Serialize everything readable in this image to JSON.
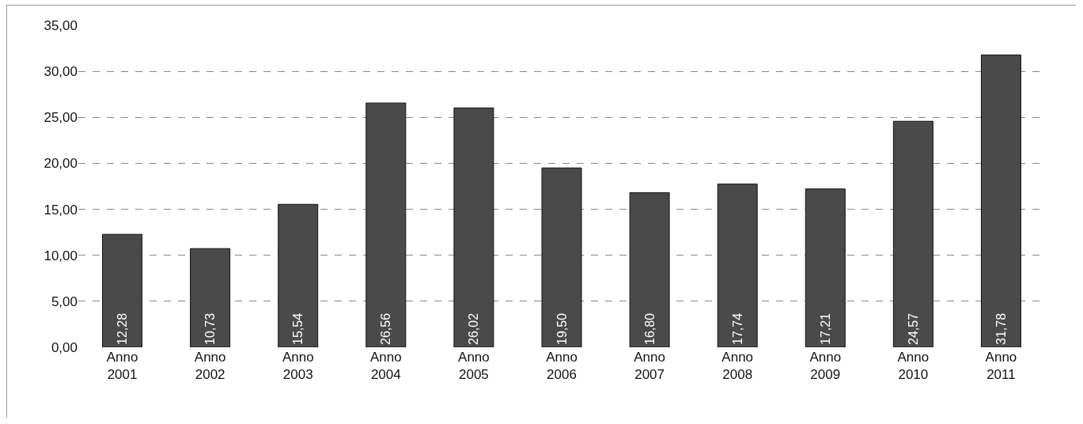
{
  "chart_data": {
    "type": "bar",
    "categories": [
      "Anno 2001",
      "Anno 2002",
      "Anno 2003",
      "Anno 2004",
      "Anno 2005",
      "Anno 2006",
      "Anno 2007",
      "Anno 2008",
      "Anno 2009",
      "Anno 2010",
      "Anno 2011"
    ],
    "values": [
      12.28,
      10.73,
      15.54,
      26.56,
      26.02,
      19.5,
      16.8,
      17.74,
      17.21,
      24.57,
      31.78
    ],
    "value_labels": [
      "12,28",
      "10,73",
      "15,54",
      "26,56",
      "26,02",
      "19,50",
      "16,80",
      "17,74",
      "17,21",
      "24,57",
      "31,78"
    ],
    "color": "#4a4a4a",
    "ylim": [
      0,
      35
    ],
    "yticks": [
      {
        "value": 0,
        "label": "0,00"
      },
      {
        "value": 5,
        "label": "5,00"
      },
      {
        "value": 10,
        "label": "10,00"
      },
      {
        "value": 15,
        "label": "15,00"
      },
      {
        "value": 20,
        "label": "20,00"
      },
      {
        "value": 25,
        "label": "25,00"
      },
      {
        "value": 30,
        "label": "30,00"
      },
      {
        "value": 35,
        "label": "35,00"
      }
    ],
    "grid": "y"
  }
}
